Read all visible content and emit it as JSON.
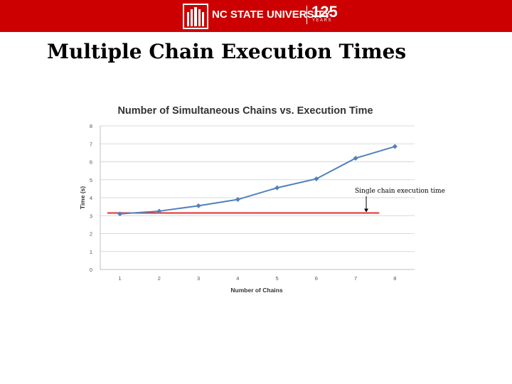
{
  "header": {
    "university": "NC STATE UNIVERSITY",
    "anniversary": "125",
    "anniversary_sub": "YEARS"
  },
  "slide": {
    "title": "Multiple Chain Execution Times"
  },
  "colors": {
    "banner": "#cc0000",
    "series_line": "#4f81bd",
    "reference_line": "#e03030"
  },
  "chart_data": {
    "type": "line",
    "title": "Number of Simultaneous Chains vs. Execution Time",
    "xlabel": "Number of Chains",
    "ylabel": "Time (s)",
    "x": [
      1,
      2,
      3,
      4,
      5,
      6,
      7,
      8
    ],
    "x_tick_labels": [
      "1",
      "2",
      "3",
      "4",
      "5",
      "6",
      "7",
      "8"
    ],
    "y_tick_labels": [
      "0",
      "1",
      "2",
      "3",
      "4",
      "5",
      "6",
      "7",
      "8"
    ],
    "ylim": [
      0,
      8
    ],
    "grid": true,
    "series": [
      {
        "values": [
          3.1,
          3.25,
          3.55,
          3.9,
          4.55,
          5.05,
          6.2,
          6.85
        ]
      }
    ],
    "reference_line": {
      "y": 3.15,
      "label": "Single chain execution time"
    }
  }
}
